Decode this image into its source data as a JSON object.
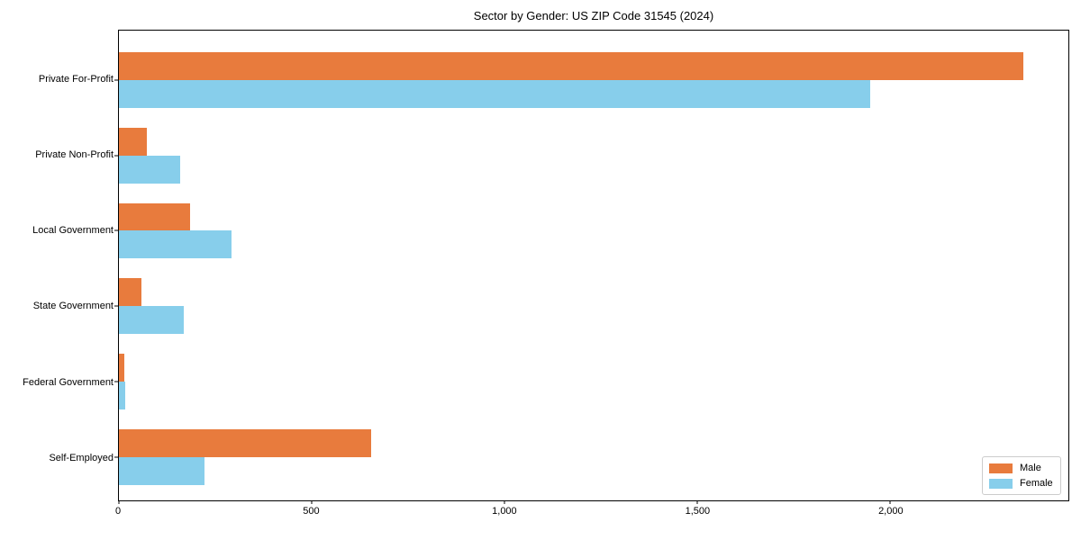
{
  "title": "Sector by Gender: US ZIP Code 31545 (2024)",
  "chart_data": {
    "type": "bar",
    "orientation": "horizontal",
    "title": "Sector by Gender: US ZIP Code 31545 (2024)",
    "categories": [
      "Private For-Profit",
      "Private Non-Profit",
      "Local Government",
      "State Government",
      "Federal Government",
      "Self-Employed"
    ],
    "series": [
      {
        "name": "Male",
        "color": "#e87b3d",
        "values": [
          2345,
          72,
          185,
          58,
          14,
          653
        ]
      },
      {
        "name": "Female",
        "color": "#87ceeb",
        "values": [
          1948,
          159,
          293,
          169,
          17,
          222
        ]
      }
    ],
    "xlabel": "",
    "ylabel": "",
    "xlim": [
      0,
      2462
    ],
    "x_ticks": [
      0,
      500,
      1000,
      1500,
      2000
    ],
    "x_tick_labels": [
      "0",
      "500",
      "1,000",
      "1,500",
      "2,000"
    ],
    "grid": false,
    "legend_position": "lower right"
  },
  "colors": {
    "axis": "#000000",
    "background": "#ffffff",
    "legend_border": "#cccccc"
  }
}
